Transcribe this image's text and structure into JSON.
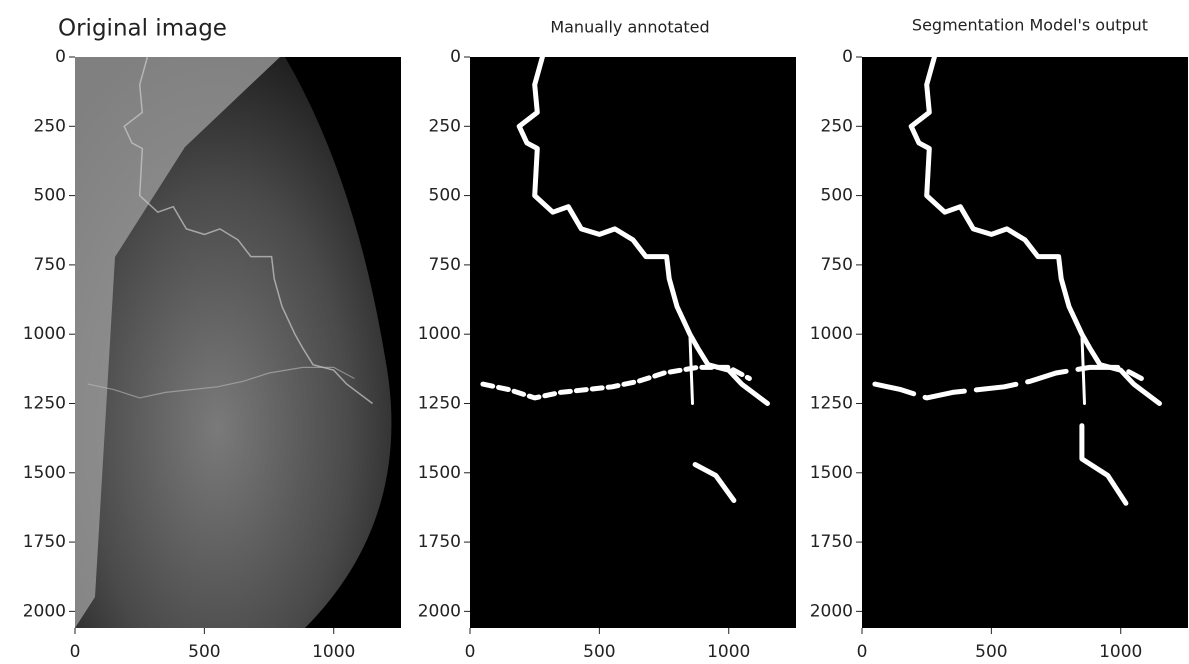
{
  "panels": [
    {
      "title": "Original image",
      "xlim": [
        0,
        1260
      ],
      "ylim": [
        0,
        2060
      ],
      "xticks": [
        0,
        500,
        1000
      ],
      "yticks": [
        0,
        250,
        500,
        750,
        1000,
        1250,
        1500,
        1750,
        2000
      ]
    },
    {
      "title": "Manually annotated",
      "xlim": [
        0,
        1260
      ],
      "ylim": [
        0,
        2060
      ],
      "xticks": [
        0,
        500,
        1000
      ],
      "yticks": [
        0,
        250,
        500,
        750,
        1000,
        1250,
        1500,
        1750,
        2000
      ]
    },
    {
      "title": "Segmentation Model's output",
      "xlim": [
        0,
        1260
      ],
      "ylim": [
        0,
        2060
      ],
      "xticks": [
        0,
        500,
        1000
      ],
      "yticks": [
        0,
        250,
        500,
        750,
        1000,
        1250,
        1500,
        1750,
        2000
      ]
    }
  ]
}
